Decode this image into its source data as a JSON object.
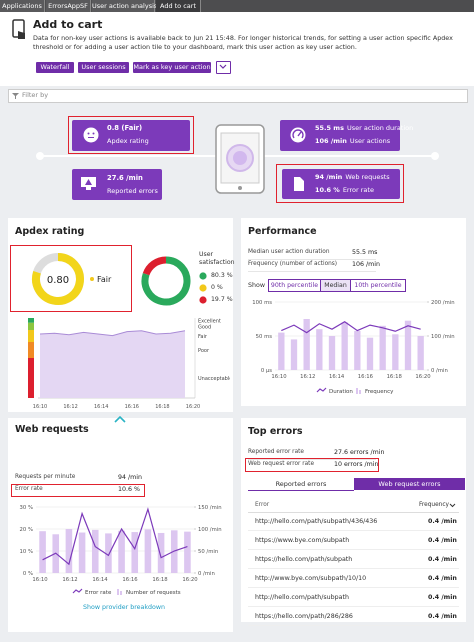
{
  "breadcrumb": [
    "Applications",
    "ErrorsAppSF",
    "User action analysis",
    "Add to cart"
  ],
  "header": {
    "title": "Add to cart",
    "description": "Data for non-key user actions is available back to Jun 21 15:48. For longer historical trends, for setting a user action specific Apdex threshold or for adding a user action tile to your dashboard, mark this user action as key user action.",
    "buttons": [
      "Waterfall",
      "User sessions",
      "Mark as key user action"
    ]
  },
  "filter": "Filter by",
  "overview": {
    "apdex": {
      "value": "0.8 (Fair)",
      "label": "Apdex rating"
    },
    "actions": {
      "duration": "55.5 ms",
      "duration_label": "User action duration",
      "rate": "106 /min",
      "rate_label": "User actions"
    },
    "errors": {
      "value": "27.6 /min",
      "label": "Reported errors"
    },
    "web": {
      "requests": "94 /min",
      "requests_label": "Web requests",
      "error_rate": "10.6 %",
      "error_rate_label": "Error rate"
    }
  },
  "apdex": {
    "title": "Apdex rating",
    "score": "0.80",
    "rating": "Fair",
    "satisfaction_label": "User satisfaction",
    "satisfaction": {
      "type": "donut",
      "values": [
        80.3,
        0,
        19.7
      ],
      "value_labels": [
        "80.3 %",
        "0 %",
        "19.7 %"
      ],
      "colors": [
        "#2aa95c",
        "#f2c81a",
        "#dc1f2e"
      ]
    },
    "chart": {
      "type": "line",
      "color": "#a98bd6",
      "values": [
        0.8,
        0.81,
        0.79,
        0.82,
        0.8,
        0.78,
        0.83,
        0.84,
        0.8,
        0.81,
        0.84
      ],
      "ylim": [
        0,
        1
      ],
      "zones": [
        {
          "label": "Excellent",
          "from": 0.94,
          "to": 1,
          "color": "#2aa95c"
        },
        {
          "label": "Good",
          "from": 0.85,
          "to": 0.94,
          "color": "#8cc63f"
        },
        {
          "label": "Fair",
          "from": 0.7,
          "to": 0.85,
          "color": "#f2c81a"
        },
        {
          "label": "Poor",
          "from": 0.5,
          "to": 0.7,
          "color": "#f08a24"
        },
        {
          "label": "Unacceptable",
          "from": 0,
          "to": 0.5,
          "color": "#dc1f2e"
        }
      ],
      "xticks": [
        "16:10",
        "16:12",
        "16:14",
        "16:16",
        "16:18",
        "16:20"
      ]
    }
  },
  "performance": {
    "title": "Performance",
    "rows": [
      {
        "label": "Median user action duration",
        "value": "55.5 ms"
      },
      {
        "label": "Frequency (number of actions)",
        "value": "106 /min"
      }
    ],
    "show_label": "Show",
    "options": [
      "90th percentile",
      "Median",
      "10th percentile"
    ],
    "chart": {
      "type": "bar-line",
      "xticks": [
        "16:10",
        "16:12",
        "16:14",
        "16:16",
        "16:18",
        "16:20"
      ],
      "series": [
        {
          "name": "Duration",
          "color": "#7c3aba",
          "values": [
            58,
            66,
            55,
            68,
            60,
            71,
            58,
            66,
            62,
            57,
            65,
            60
          ]
        },
        {
          "name": "Frequency",
          "axis": "y2",
          "color": "#dcc6f0",
          "values": [
            110,
            90,
            150,
            120,
            100,
            140,
            115,
            95,
            130,
            105,
            145,
            100
          ]
        }
      ],
      "ylim": [
        0,
        100
      ],
      "yticks": [
        {
          "value": 0,
          "label": "0 µs"
        },
        {
          "value": 50,
          "label": "50 ms"
        },
        {
          "value": 100,
          "label": "100 ms"
        }
      ],
      "y2lim": [
        0,
        200
      ],
      "y2ticks": [
        {
          "value": 0,
          "label": "0 /min"
        },
        {
          "value": 100,
          "label": "100 /min"
        },
        {
          "value": 200,
          "label": "200 /min"
        }
      ]
    }
  },
  "web_requests": {
    "title": "Web requests",
    "rows": [
      {
        "label": "Requests per minute",
        "value": "94 /min"
      },
      {
        "label": "Error rate",
        "value": "10.6 %"
      }
    ],
    "chart": {
      "type": "bar-line",
      "xticks": [
        "16:10",
        "16:12",
        "16:14",
        "16:16",
        "16:18",
        "16:20"
      ],
      "series": [
        {
          "name": "Error rate",
          "color": "#7c3aba",
          "values": [
            6,
            9,
            4,
            27,
            12,
            8,
            20,
            11,
            29,
            7,
            10,
            12
          ]
        },
        {
          "name": "Number of requests",
          "axis": "y2",
          "color": "#dcc6f0",
          "values": [
            95,
            88,
            100,
            92,
            98,
            90,
            96,
            93,
            99,
            91,
            97,
            94
          ]
        }
      ],
      "ylim": [
        0,
        30
      ],
      "yticks": [
        {
          "value": 0,
          "label": "0 %"
        },
        {
          "value": 10,
          "label": "10 %"
        },
        {
          "value": 20,
          "label": "20 %"
        },
        {
          "value": 30,
          "label": "30 %"
        }
      ],
      "y2lim": [
        0,
        150
      ],
      "y2ticks": [
        {
          "value": 0,
          "label": "0 /min"
        },
        {
          "value": 50,
          "label": "50 /min"
        },
        {
          "value": 100,
          "label": "100 /min"
        },
        {
          "value": 150,
          "label": "150 /min"
        }
      ]
    },
    "link": "Show provider breakdown"
  },
  "top_errors": {
    "title": "Top errors",
    "rows": [
      {
        "label": "Reported error rate",
        "value": "27.6 errors /min"
      },
      {
        "label": "Web request error rate",
        "value": "10 errors /min"
      }
    ],
    "tabs": [
      "Reported errors",
      "Web request errors"
    ],
    "table": {
      "header": [
        "Error",
        "Frequency"
      ],
      "rows": [
        [
          "http://hello.com/path/subpath/436/436",
          "0.4 /min"
        ],
        [
          "https://www.bye.com/subpath",
          "0.4 /min"
        ],
        [
          "https://hello.com/path/subpath",
          "0.4 /min"
        ],
        [
          "http://www.bye.com/subpath/10/10",
          "0.4 /min"
        ],
        [
          "http://hello.com/path/subpath",
          "0.4 /min"
        ],
        [
          "https://hello.com/path/286/286",
          "0.4 /min"
        ]
      ]
    }
  }
}
